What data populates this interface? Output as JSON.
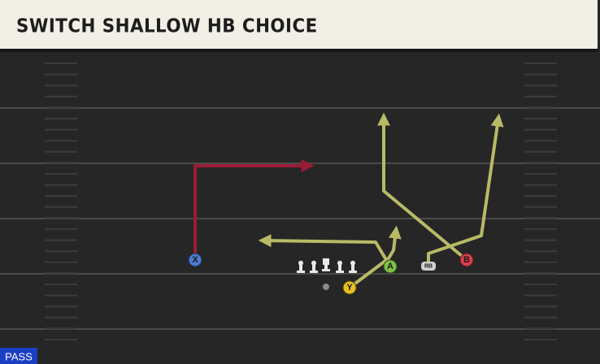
{
  "header": {
    "title": "SWITCH SHALLOW HB CHOICE"
  },
  "play_type": "PASS",
  "players": [
    {
      "label": "X"
    },
    {
      "label": "Y"
    },
    {
      "label": "A"
    },
    {
      "label": "B"
    },
    {
      "label": "RB"
    }
  ]
}
